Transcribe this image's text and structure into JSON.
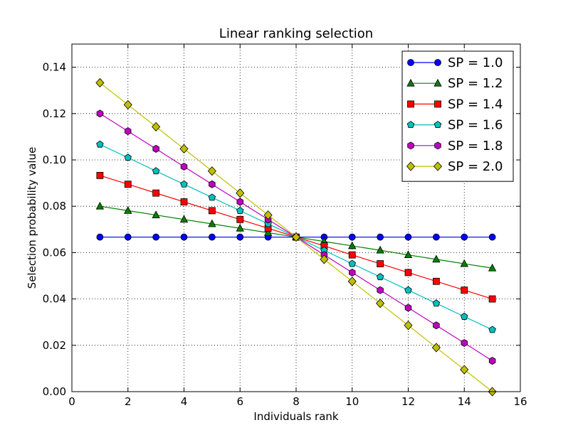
{
  "chart_data": {
    "type": "line",
    "title": "Linear ranking selection",
    "xlabel": "Individuals rank",
    "ylabel": "Selection probability value",
    "xlim": [
      0,
      16
    ],
    "ylim": [
      0.0,
      0.15
    ],
    "xticks": [
      0,
      2,
      4,
      6,
      8,
      10,
      12,
      14,
      16
    ],
    "yticks": [
      0.0,
      0.02,
      0.04,
      0.06,
      0.08,
      0.1,
      0.12,
      0.14
    ],
    "xtick_labels": [
      "0",
      "2",
      "4",
      "6",
      "8",
      "10",
      "12",
      "14",
      "16"
    ],
    "ytick_labels": [
      "0.00",
      "0.02",
      "0.04",
      "0.06",
      "0.08",
      "0.10",
      "0.12",
      "0.14"
    ],
    "grid": true,
    "legend_position": "top-right",
    "x": [
      1,
      2,
      3,
      4,
      5,
      6,
      7,
      8,
      9,
      10,
      11,
      12,
      13,
      14,
      15
    ],
    "series": [
      {
        "name": "SP = 1.0",
        "color": "#0000ff",
        "marker": "circle",
        "values": [
          0.0667,
          0.0667,
          0.0667,
          0.0667,
          0.0667,
          0.0667,
          0.0667,
          0.0667,
          0.0667,
          0.0667,
          0.0667,
          0.0667,
          0.0667,
          0.0667,
          0.0667
        ]
      },
      {
        "name": "SP = 1.2",
        "color": "#008000",
        "marker": "triangle",
        "values": [
          0.08,
          0.0781,
          0.0762,
          0.0743,
          0.0724,
          0.0705,
          0.0686,
          0.0667,
          0.0648,
          0.0629,
          0.061,
          0.059,
          0.0571,
          0.0552,
          0.0533
        ]
      },
      {
        "name": "SP = 1.4",
        "color": "#ff0000",
        "marker": "square",
        "values": [
          0.0933,
          0.0895,
          0.0857,
          0.0819,
          0.0781,
          0.0743,
          0.0705,
          0.0667,
          0.0629,
          0.059,
          0.0552,
          0.0514,
          0.0476,
          0.0438,
          0.04
        ]
      },
      {
        "name": "SP = 1.6",
        "color": "#00bfbf",
        "marker": "pentagon",
        "values": [
          0.1067,
          0.101,
          0.0952,
          0.0895,
          0.0838,
          0.0781,
          0.0724,
          0.0667,
          0.061,
          0.0552,
          0.0495,
          0.0438,
          0.0381,
          0.0324,
          0.0267
        ]
      },
      {
        "name": "SP = 1.8",
        "color": "#bf00bf",
        "marker": "hexagon",
        "values": [
          0.12,
          0.1124,
          0.1048,
          0.0971,
          0.0895,
          0.0819,
          0.0743,
          0.0667,
          0.059,
          0.0514,
          0.0438,
          0.0362,
          0.0286,
          0.021,
          0.0133
        ]
      },
      {
        "name": "SP = 2.0",
        "color": "#bfbf00",
        "marker": "diamond",
        "values": [
          0.1333,
          0.1238,
          0.1143,
          0.1048,
          0.0952,
          0.0857,
          0.0762,
          0.0667,
          0.0571,
          0.0476,
          0.0381,
          0.0286,
          0.019,
          0.0095,
          0.0
        ]
      }
    ]
  }
}
